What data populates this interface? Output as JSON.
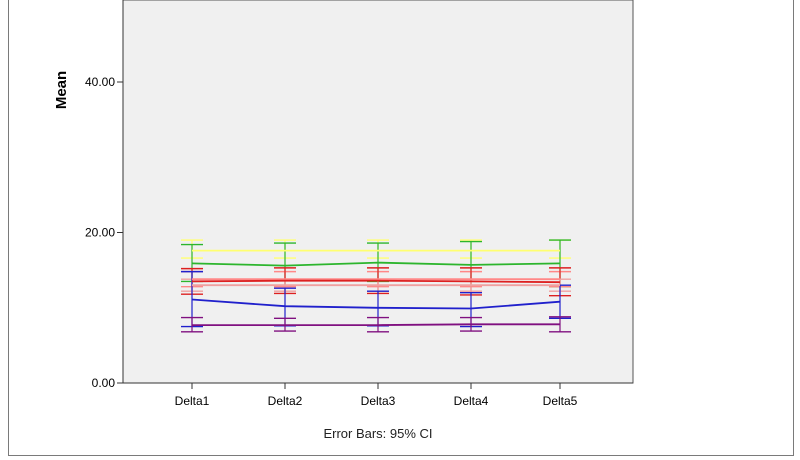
{
  "chart_data": {
    "type": "line",
    "ylabel": "Mean",
    "footnote": "Error Bars: 95% CI",
    "ylim": [
      0,
      50
    ],
    "y_ticks": [
      "0.00",
      "20.00",
      "40.00"
    ],
    "y_tick_values": [
      0,
      20,
      40
    ],
    "categories": [
      "Delta1",
      "Delta2",
      "Delta3",
      "Delta4",
      "Delta5"
    ],
    "grid": false,
    "background": "#f0f0f0",
    "series": [
      {
        "color": "#ffff70",
        "mean": [
          17.6,
          17.6,
          17.6,
          17.6,
          17.6
        ],
        "lower": [
          16.6,
          16.6,
          16.6,
          16.6,
          16.6
        ],
        "upper": [
          19.0,
          19.0,
          19.0,
          19.0,
          19.0
        ]
      },
      {
        "color": "#2db52d",
        "mean": [
          15.9,
          15.6,
          16.0,
          15.7,
          15.9
        ],
        "lower": [
          13.5,
          12.9,
          13.5,
          12.9,
          12.8
        ],
        "upper": [
          18.4,
          18.6,
          18.6,
          18.8,
          19.0
        ]
      },
      {
        "color": "#ff8888",
        "mean": [
          13.8,
          13.8,
          13.8,
          13.8,
          13.8
        ],
        "lower": [
          12.8,
          12.8,
          12.8,
          12.8,
          12.8
        ],
        "upper": [
          14.8,
          14.8,
          14.8,
          14.8,
          14.8
        ]
      },
      {
        "color": "#dd2020",
        "mean": [
          13.5,
          13.6,
          13.6,
          13.5,
          13.4
        ],
        "lower": [
          11.8,
          11.9,
          11.9,
          11.7,
          11.6
        ],
        "upper": [
          15.2,
          15.3,
          15.3,
          15.3,
          15.3
        ]
      },
      {
        "color": "#f0a0a0",
        "mean": [
          13.0,
          13.0,
          13.0,
          13.0,
          13.0
        ],
        "lower": [
          12.2,
          12.2,
          12.2,
          12.2,
          12.2
        ],
        "upper": [
          13.8,
          13.8,
          13.8,
          13.8,
          13.8
        ]
      },
      {
        "color": "#2020cc",
        "mean": [
          11.1,
          10.2,
          10.0,
          9.9,
          10.8
        ],
        "lower": [
          7.5,
          7.6,
          7.6,
          7.5,
          8.6
        ],
        "upper": [
          14.8,
          12.6,
          12.2,
          12.0,
          13.0
        ]
      },
      {
        "color": "#801080",
        "mean": [
          7.7,
          7.7,
          7.7,
          7.8,
          7.8
        ],
        "lower": [
          6.8,
          6.9,
          6.8,
          6.9,
          6.8
        ],
        "upper": [
          8.7,
          8.6,
          8.7,
          8.7,
          8.8
        ]
      }
    ]
  }
}
